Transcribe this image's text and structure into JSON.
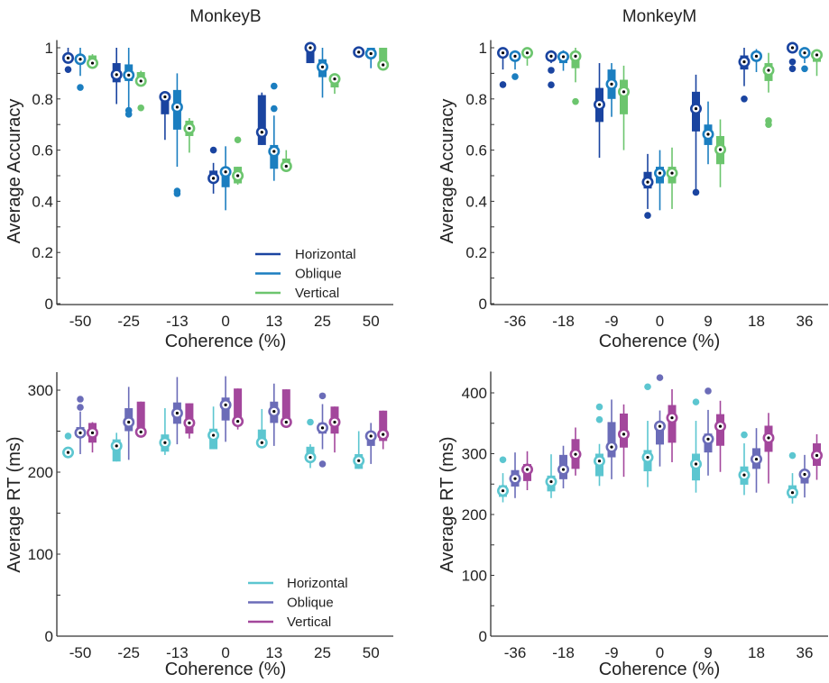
{
  "chart_data": [
    {
      "type": "box",
      "title": "MonkeyB",
      "xlabel": "Coherence (%)",
      "ylabel": "Average Accuracy",
      "categories": [
        "-50",
        "-25",
        "-13",
        "0",
        "13",
        "25",
        "50"
      ],
      "ylim": [
        0,
        1.03
      ],
      "yticks": [
        0,
        0.2,
        0.4,
        0.6,
        0.8,
        1
      ],
      "ytick_labels": [
        "0",
        "0.2",
        "0.4",
        "0.6",
        "0.8",
        "1"
      ],
      "minor_step": 0.1,
      "legend": {
        "placement": "bottom-right",
        "show": true
      },
      "series": [
        {
          "name": "Horizontal",
          "color": "#1a44a0",
          "boxes": [
            [
              0.94,
              0.95,
              0.96,
              0.97,
              1.0
            ],
            [
              0.78,
              0.865,
              0.895,
              0.94,
              1.0
            ],
            [
              0.64,
              0.74,
              0.808,
              0.81,
              0.82
            ],
            [
              0.43,
              0.48,
              0.49,
              0.52,
              0.55
            ],
            [
              0.62,
              0.62,
              0.67,
              0.815,
              0.825
            ],
            [
              0.94,
              0.94,
              1.0,
              1.0,
              1.0
            ],
            [
              0.975,
              0.975,
              0.983,
              0.99,
              0.99
            ]
          ],
          "outliers": [
            [
              0.915
            ],
            [],
            [],
            [
              0.6
            ],
            [],
            [],
            []
          ]
        },
        {
          "name": "Oblique",
          "color": "#1b7ec0",
          "boxes": [
            [
              0.89,
              0.94,
              0.955,
              0.965,
              1.0
            ],
            [
              0.75,
              0.87,
              0.893,
              0.935,
              1.0
            ],
            [
              0.535,
              0.68,
              0.768,
              0.835,
              0.9
            ],
            [
              0.365,
              0.455,
              0.515,
              0.52,
              0.615
            ],
            [
              0.48,
              0.527,
              0.595,
              0.62,
              0.735
            ],
            [
              0.805,
              0.885,
              0.925,
              0.955,
              1.0
            ],
            [
              0.92,
              0.965,
              0.977,
              1.0,
              1.0
            ]
          ],
          "outliers": [
            [
              0.845
            ],
            [
              0.755,
              0.74
            ],
            [
              0.44,
              0.43
            ],
            [],
            [
              0.85,
              0.762
            ],
            [],
            []
          ]
        },
        {
          "name": "Vertical",
          "color": "#6cc56e",
          "boxes": [
            [
              0.93,
              0.93,
              0.94,
              0.97,
              0.975
            ],
            [
              0.86,
              0.865,
              0.87,
              0.905,
              0.91
            ],
            [
              0.59,
              0.655,
              0.685,
              0.715,
              0.725
            ],
            [
              0.465,
              0.47,
              0.5,
              0.535,
              0.535
            ],
            [
              0.53,
              0.53,
              0.537,
              0.567,
              0.6
            ],
            [
              0.82,
              0.845,
              0.878,
              0.885,
              0.89
            ],
            [
              0.93,
              0.93,
              0.933,
              1.0,
              1.0
            ]
          ],
          "outliers": [
            [],
            [
              0.765
            ],
            [],
            [
              0.64
            ],
            [],
            [],
            []
          ]
        }
      ]
    },
    {
      "type": "box",
      "title": "MonkeyM",
      "xlabel": "Coherence (%)",
      "ylabel": "Average Accuracy",
      "categories": [
        "-36",
        "-18",
        "-9",
        "0",
        "9",
        "18",
        "36"
      ],
      "ylim": [
        0,
        1.03
      ],
      "yticks": [
        0,
        0.2,
        0.4,
        0.6,
        0.8,
        1
      ],
      "ytick_labels": [
        "0",
        "0.2",
        "0.4",
        "0.6",
        "0.8",
        "1"
      ],
      "minor_step": 0.1,
      "legend": {
        "show": false
      },
      "series": [
        {
          "name": "Horizontal",
          "color": "#1a44a0",
          "boxes": [
            [
              0.915,
              0.97,
              0.98,
              0.99,
              1.0
            ],
            [
              0.94,
              0.955,
              0.967,
              0.98,
              0.99
            ],
            [
              0.57,
              0.71,
              0.778,
              0.843,
              0.94
            ],
            [
              0.37,
              0.45,
              0.475,
              0.515,
              0.585
            ],
            [
              0.44,
              0.673,
              0.762,
              0.828,
              0.895
            ],
            [
              0.85,
              0.915,
              0.945,
              0.97,
              1.0
            ],
            [
              0.99,
              0.99,
              1.0,
              1.0,
              1.0
            ]
          ],
          "outliers": [
            [
              0.856
            ],
            [
              0.912,
              0.855
            ],
            [],
            [
              0.345
            ],
            [
              0.435
            ],
            [
              0.8
            ],
            [
              0.945,
              0.918
            ]
          ]
        },
        {
          "name": "Oblique",
          "color": "#1b7ec0",
          "boxes": [
            [
              0.915,
              0.955,
              0.967,
              0.975,
              0.99
            ],
            [
              0.91,
              0.94,
              0.965,
              0.975,
              0.99
            ],
            [
              0.73,
              0.8,
              0.858,
              0.915,
              0.94
            ],
            [
              0.365,
              0.47,
              0.51,
              0.535,
              0.6
            ],
            [
              0.545,
              0.62,
              0.662,
              0.7,
              0.79
            ],
            [
              0.905,
              0.95,
              0.967,
              0.98,
              0.995
            ],
            [
              0.94,
              0.965,
              0.98,
              0.99,
              0.99
            ]
          ],
          "outliers": [
            [
              0.887
            ],
            [],
            [],
            [],
            [],
            [],
            [
              0.918
            ]
          ]
        },
        {
          "name": "Vertical",
          "color": "#6cc56e",
          "boxes": [
            [
              0.93,
              0.97,
              0.98,
              0.99,
              0.99
            ],
            [
              0.865,
              0.92,
              0.967,
              0.975,
              1.0
            ],
            [
              0.6,
              0.74,
              0.828,
              0.875,
              0.93
            ],
            [
              0.37,
              0.47,
              0.51,
              0.535,
              0.61
            ],
            [
              0.455,
              0.545,
              0.602,
              0.655,
              0.72
            ],
            [
              0.825,
              0.87,
              0.912,
              0.94,
              0.98
            ],
            [
              0.89,
              0.945,
              0.972,
              0.98,
              0.99
            ]
          ],
          "outliers": [
            [],
            [
              0.79
            ],
            [],
            [],
            [],
            [
              0.715,
              0.7
            ],
            []
          ]
        }
      ]
    },
    {
      "type": "box",
      "title": "",
      "xlabel": "Coherence (%)",
      "ylabel": "Average RT (ms)",
      "categories": [
        "-50",
        "-25",
        "-13",
        "0",
        "13",
        "25",
        "50"
      ],
      "ylim": [
        0,
        322
      ],
      "yticks": [
        0,
        100,
        200,
        300
      ],
      "ytick_labels": [
        "0",
        "100",
        "200",
        "300"
      ],
      "minor_step": 50,
      "legend": {
        "placement": "bottom-right",
        "show": true
      },
      "series": [
        {
          "name": "Horizontal",
          "color": "#5cc6d0",
          "boxes": [
            [
              222,
              222,
              224,
              226,
              226
            ],
            [
              213,
              213,
              232,
              240,
              248
            ],
            [
              221,
              225,
              236,
              246,
              278
            ],
            [
              228,
              228,
              245,
              253,
              280
            ],
            [
              236,
              236,
              236,
              252,
              277
            ],
            [
              205,
              218,
              218,
              231,
              234
            ],
            [
              204,
              204,
              214,
              222,
              250
            ]
          ],
          "outliers": [
            [
              244
            ],
            [],
            [],
            [],
            [],
            [
              261
            ],
            []
          ]
        },
        {
          "name": "Oblique",
          "color": "#6b6cb8",
          "boxes": [
            [
              222,
              243,
              248,
              255,
              274
            ],
            [
              215,
              250,
              261,
              278,
              304
            ],
            [
              234,
              259,
              272,
              285,
              316
            ],
            [
              237,
              263,
              282,
              291,
              317
            ],
            [
              232,
              260,
              274,
              286,
              308
            ],
            [
              228,
              247,
              254,
              260,
              283
            ],
            [
              210,
              232,
              244,
              245,
              260
            ]
          ],
          "outliers": [
            [
              279,
              289
            ],
            [],
            [],
            [],
            [],
            [
              293,
              210
            ],
            []
          ]
        },
        {
          "name": "Vertical",
          "color": "#a3479c",
          "boxes": [
            [
              224,
              236,
              248,
              260,
              261
            ],
            [
              249,
              249,
              249,
              286,
              286
            ],
            [
              241,
              247,
              260,
              284,
              284
            ],
            [
              252,
              262,
              262,
              302,
              302
            ],
            [
              254,
              256,
              261,
              301,
              301
            ],
            [
              224,
              247,
              261,
              280,
              280
            ],
            [
              228,
              238,
              246,
              275,
              275
            ]
          ],
          "outliers": [
            [],
            [],
            [],
            [],
            [],
            [],
            []
          ]
        }
      ]
    },
    {
      "type": "box",
      "title": "",
      "xlabel": "Coherence (%)",
      "ylabel": "Average RT (ms)",
      "categories": [
        "-36",
        "-18",
        "-9",
        "0",
        "9",
        "18",
        "36"
      ],
      "ylim": [
        0,
        435
      ],
      "yticks": [
        0,
        100,
        200,
        300,
        400
      ],
      "ytick_labels": [
        "0",
        "100",
        "200",
        "300",
        "400"
      ],
      "minor_step": 50,
      "legend": {
        "show": false
      },
      "series": [
        {
          "name": "Horizontal",
          "color": "#5cc6d0",
          "boxes": [
            [
              220,
              229,
              239,
              248,
              268
            ],
            [
              227,
              238,
              254,
              264,
              299
            ],
            [
              247,
              263,
              288,
              300,
              316
            ],
            [
              245,
              271,
              294,
              306,
              354
            ],
            [
              236,
              256,
              283,
              300,
              354
            ],
            [
              232,
              249,
              265,
              279,
              317
            ],
            [
              218,
              227,
              236,
              248,
              268
            ]
          ],
          "outliers": [
            [
              290
            ],
            [],
            [
              377,
              356
            ],
            [
              410
            ],
            [
              385
            ],
            [
              331
            ],
            [
              297
            ]
          ]
        },
        {
          "name": "Oblique",
          "color": "#6b6cb8",
          "boxes": [
            [
              227,
              246,
              259,
              273,
              302
            ],
            [
              243,
              258,
              274,
              298,
              313
            ],
            [
              258,
              294,
              311,
              352,
              389
            ],
            [
              279,
              315,
              345,
              345,
              371
            ],
            [
              264,
              302,
              324,
              333,
              372
            ],
            [
              236,
              275,
              291,
              309,
              342
            ],
            [
              228,
              251,
              266,
              266,
              298
            ]
          ],
          "outliers": [
            [],
            [],
            [],
            [
              425
            ],
            [
              403
            ],
            [],
            []
          ]
        },
        {
          "name": "Vertical",
          "color": "#a3479c",
          "boxes": [
            [
              240,
              255,
              274,
              283,
              304
            ],
            [
              264,
              275,
              299,
              324,
              343
            ],
            [
              262,
              310,
              332,
              366,
              381
            ],
            [
              286,
              318,
              359,
              380,
              406
            ],
            [
              270,
              313,
              345,
              365,
              387
            ],
            [
              251,
              303,
              326,
              346,
              367
            ],
            [
              257,
              280,
              297,
              317,
              332
            ]
          ],
          "outliers": [
            [],
            [],
            [],
            [],
            [],
            [],
            []
          ]
        }
      ]
    }
  ]
}
